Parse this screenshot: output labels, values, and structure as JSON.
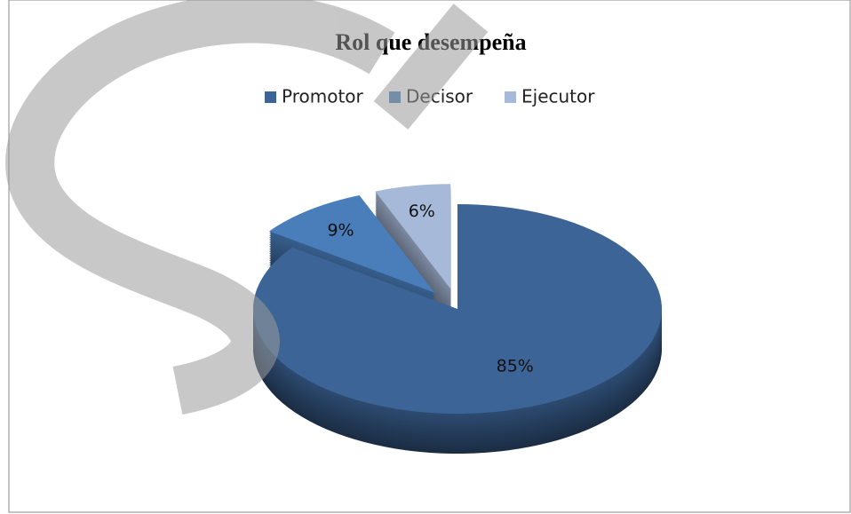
{
  "chart_data": {
    "type": "pie",
    "title": "Rol que desempeña",
    "categories": [
      "Promotor",
      "Decisor",
      "Ejecutor"
    ],
    "values": [
      85,
      9,
      6
    ],
    "value_labels": [
      "85%",
      "9%",
      "6%"
    ],
    "colors": [
      "#3c6496",
      "#4a7ebb",
      "#a7b9d9"
    ],
    "legend": "top"
  }
}
